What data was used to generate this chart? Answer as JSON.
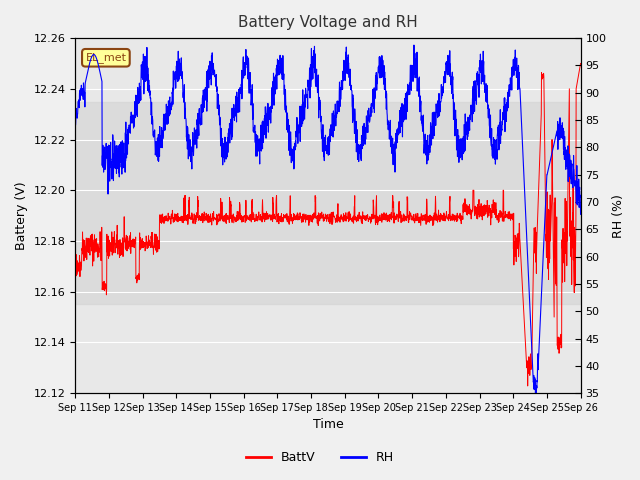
{
  "title": "Battery Voltage and RH",
  "xlabel": "Time",
  "ylabel_left": "Battery (V)",
  "ylabel_right": "RH (%)",
  "annotation": "EL_met",
  "x_tick_labels": [
    "Sep 11",
    "Sep 12",
    "Sep 13",
    "Sep 14",
    "Sep 15",
    "Sep 16",
    "Sep 17",
    "Sep 18",
    "Sep 19",
    "Sep 20",
    "Sep 21",
    "Sep 22",
    "Sep 23",
    "Sep 24",
    "Sep 25",
    "Sep 26"
  ],
  "ylim_left": [
    12.12,
    12.26
  ],
  "ylim_right": [
    35,
    100
  ],
  "yticks_left": [
    12.12,
    12.14,
    12.16,
    12.18,
    12.2,
    12.22,
    12.24,
    12.26
  ],
  "yticks_right": [
    35,
    40,
    45,
    50,
    55,
    60,
    65,
    70,
    75,
    80,
    85,
    90,
    95,
    100
  ],
  "legend_labels": [
    "BattV",
    "RH"
  ],
  "legend_colors": [
    "red",
    "blue"
  ],
  "batt_color": "red",
  "rh_color": "blue",
  "background_color": "#f0f0f0",
  "plot_bg_color": "#e8e8e8",
  "title_color": "#333333",
  "grid_color": "white"
}
